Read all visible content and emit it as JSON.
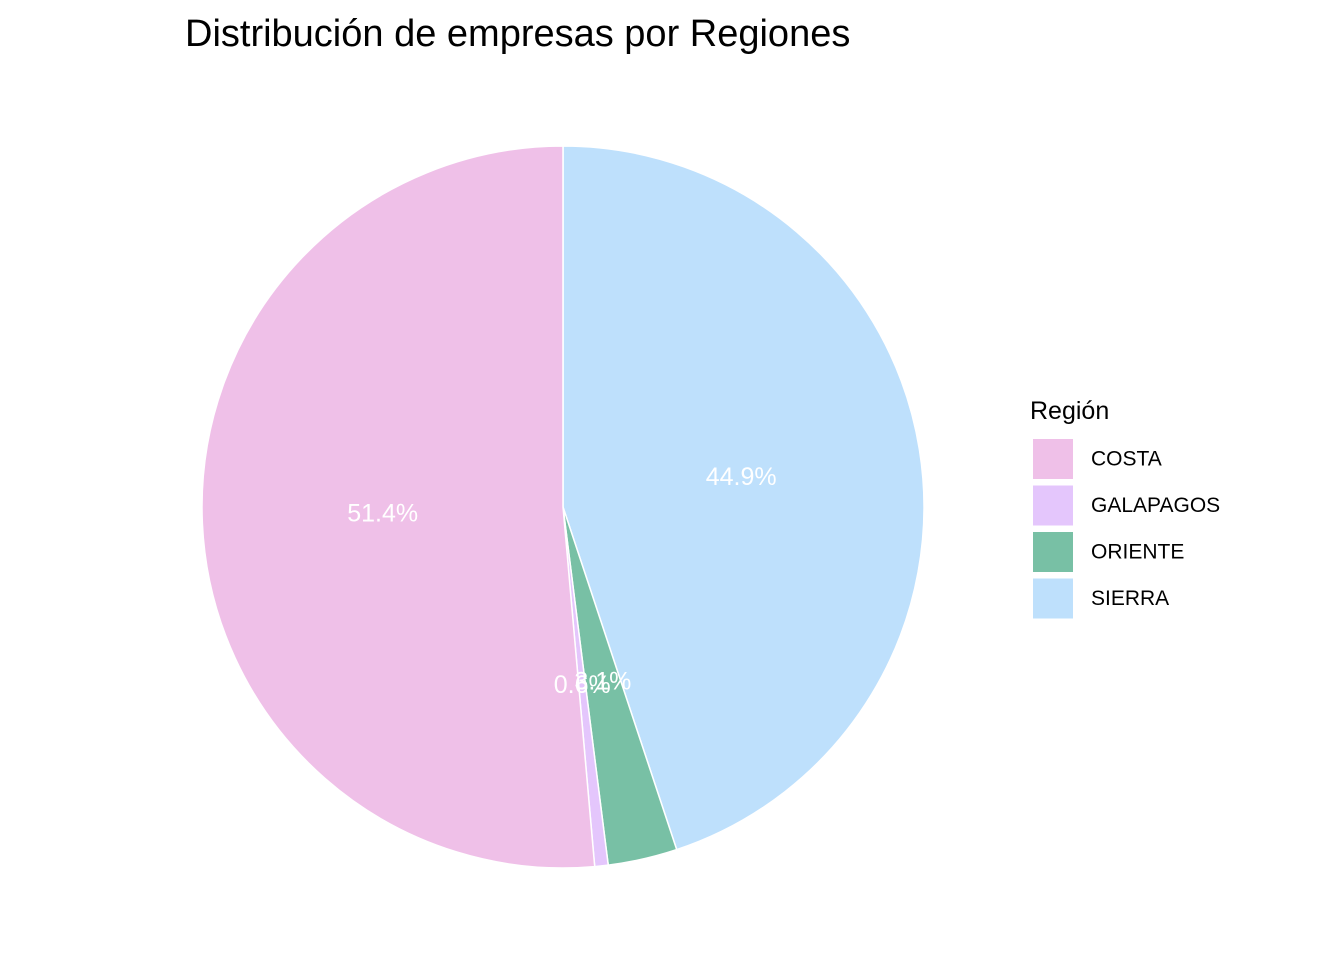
{
  "chart_data": {
    "type": "pie",
    "title": "Distribución de empresas por Regiones",
    "legend_title": "Región",
    "legend_position": "right",
    "start": "12 o'clock, clockwise, in reverse category order",
    "slice_border_color": "#ffffff",
    "categories": [
      "COSTA",
      "GALAPAGOS",
      "ORIENTE",
      "SIERRA"
    ],
    "values": [
      51.4,
      0.6,
      3.1,
      44.9
    ],
    "labels": [
      "51.4%",
      "0.6%",
      "3.1%",
      "44.9%"
    ],
    "colors": [
      "#EFC0E8",
      "#E4C6FC",
      "#78C0A5",
      "#BEE0FC"
    ]
  }
}
